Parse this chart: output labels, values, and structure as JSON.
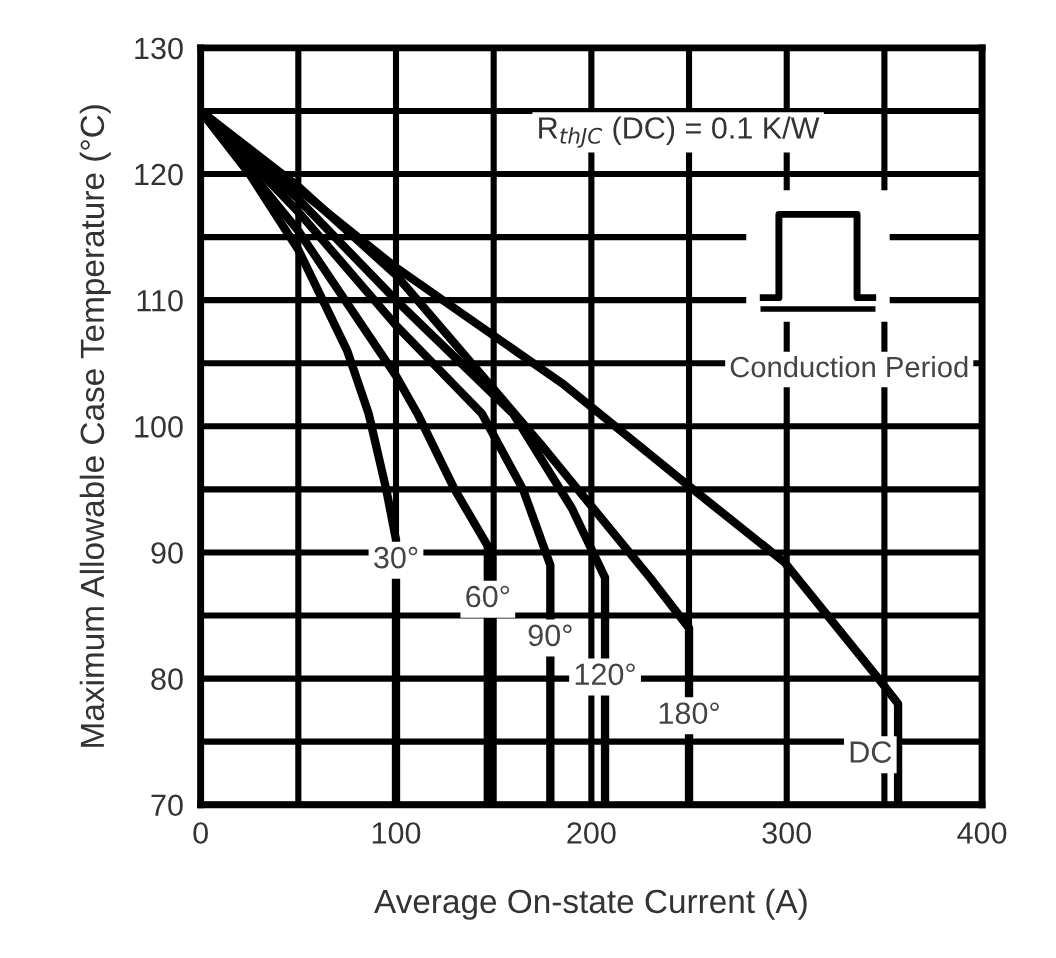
{
  "chart_data": {
    "type": "line",
    "xlabel": "Average On-state Current (A)",
    "ylabel": "Maximum Allowable Case Temperature (°C)",
    "annotations": [
      "R$_{thJC}$ (DC) = 0.1 K/W",
      "Conduction Period"
    ],
    "series": [
      {
        "name": "30°",
        "color": "#000000",
        "x": [
          0,
          25,
          50,
          75,
          86,
          95,
          100,
          100
        ],
        "values": [
          125,
          120,
          114,
          106,
          101,
          95,
          91,
          70
        ]
      },
      {
        "name": "60°",
        "color": "#000000",
        "x": [
          0,
          50,
          100,
          111,
          130,
          147,
          147
        ],
        "values": [
          125,
          115.5,
          104,
          101,
          95,
          90.5,
          70
        ]
      },
      {
        "name": "90°",
        "color": "#000000",
        "x": [
          0,
          50,
          100,
          144,
          165,
          179,
          179
        ],
        "values": [
          125,
          117,
          108,
          101,
          95,
          89,
          70
        ]
      },
      {
        "name": "120°",
        "color": "#000000",
        "x": [
          0,
          50,
          100,
          160,
          190,
          207,
          207
        ],
        "values": [
          125,
          118,
          110,
          101,
          93.5,
          88,
          70
        ]
      },
      {
        "name": "180°",
        "color": "#000000",
        "x": [
          0,
          50,
          100,
          174,
          230,
          250,
          250
        ],
        "values": [
          125,
          119,
          112,
          98.6,
          88,
          84,
          70
        ]
      },
      {
        "name": "DC",
        "color": "#000000",
        "x": [
          0,
          99,
          186,
          248,
          299,
          347,
          357,
          357
        ],
        "values": [
          125,
          112.7,
          103.3,
          95.5,
          89.2,
          80,
          78,
          70
        ]
      }
    ],
    "xlim": [
      0,
      400
    ],
    "ylim": [
      70,
      130
    ],
    "xticks": [
      0,
      {
        "value": 50,
        "label": null
      },
      100,
      {
        "value": 150,
        "label": null
      },
      200,
      {
        "value": 250,
        "label": null
      },
      300,
      {
        "value": 350,
        "label": null
      },
      400
    ],
    "yticks": [
      70,
      {
        "value": 75,
        "label": null
      },
      80,
      {
        "value": 85,
        "label": null
      },
      90,
      {
        "value": 95,
        "label": null
      },
      100,
      {
        "value": 105,
        "label": null
      },
      110,
      {
        "value": 115,
        "label": null
      },
      120,
      {
        "value": 125,
        "label": null
      },
      130
    ],
    "grid": true,
    "legend": false,
    "marker": "none",
    "line_style": "solid"
  }
}
